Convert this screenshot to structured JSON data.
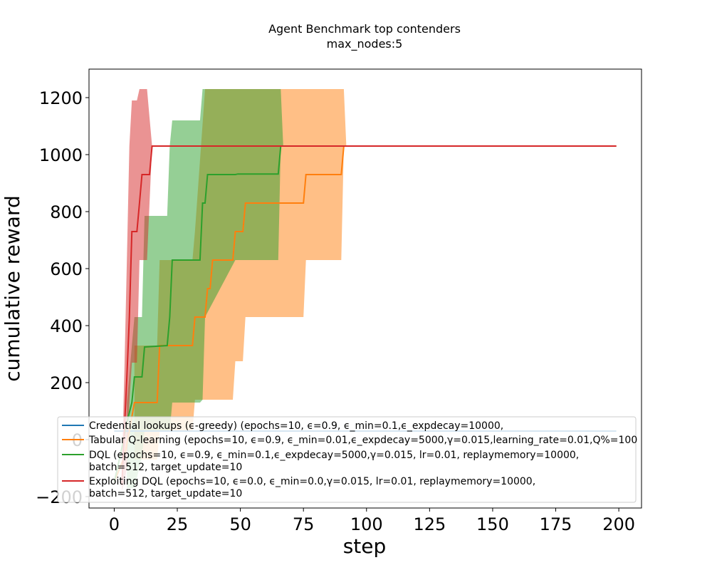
{
  "chart_data": {
    "type": "line",
    "title": "Agent Benchmark top contenders",
    "subtitle": "max_nodes:5",
    "xlabel": "step",
    "ylabel": "cumulative reward",
    "xlim": [
      -10,
      209
    ],
    "ylim": [
      -240,
      1300
    ],
    "xticks": [
      0,
      25,
      50,
      75,
      100,
      125,
      150,
      175,
      200
    ],
    "yticks": [
      -200,
      0,
      200,
      400,
      600,
      800,
      1000,
      1200
    ],
    "legend_position": "lower-center",
    "grid": false,
    "series": [
      {
        "name": "Credential lookups (ϵ-greedy) (epochs=10, ϵ=0.9, ϵ_min=0.1,ϵ_expdecay=10000,",
        "color": "#1f77b4",
        "mean": [
          [
            0,
            30
          ],
          [
            199,
            30
          ]
        ],
        "band_upper": [],
        "band_lower": []
      },
      {
        "name": "Tabular Q-learning (epochs=10, ϵ=0.9, ϵ_min=0.01,ϵ_expdecay=5000,γ=0.015,learning_rate=0.01,Q%=100",
        "color": "#ff7f0e",
        "mean": [
          [
            0,
            -150
          ],
          [
            4,
            -60
          ],
          [
            6,
            30
          ],
          [
            8,
            130
          ],
          [
            17,
            130
          ],
          [
            18,
            330
          ],
          [
            31,
            330
          ],
          [
            32,
            430
          ],
          [
            36,
            430
          ],
          [
            37,
            530
          ],
          [
            38,
            530
          ],
          [
            39,
            630
          ],
          [
            47,
            630
          ],
          [
            48,
            730
          ],
          [
            51,
            730
          ],
          [
            52,
            830
          ],
          [
            75,
            830
          ],
          [
            76,
            930
          ],
          [
            90,
            930
          ],
          [
            91,
            1030
          ],
          [
            199,
            1030
          ]
        ],
        "band_upper": [
          [
            8,
            330
          ],
          [
            17,
            330
          ],
          [
            18,
            630
          ],
          [
            31,
            630
          ],
          [
            32,
            730
          ],
          [
            36,
            1230
          ],
          [
            91,
            1230
          ],
          [
            92,
            1030
          ],
          [
            199,
            1030
          ]
        ],
        "band_lower": [
          [
            8,
            -70
          ],
          [
            17,
            -70
          ],
          [
            18,
            30
          ],
          [
            31,
            30
          ],
          [
            32,
            140
          ],
          [
            47,
            140
          ],
          [
            48,
            275
          ],
          [
            51,
            275
          ],
          [
            52,
            430
          ],
          [
            75,
            430
          ],
          [
            76,
            630
          ],
          [
            90,
            630
          ],
          [
            91,
            1030
          ],
          [
            199,
            1030
          ]
        ]
      },
      {
        "name": "DQL (epochs=10, ϵ=0.9, ϵ_min=0.1,ϵ_expdecay=5000,γ=0.015, lr=0.01, replaymemory=10000,",
        "name_line2": "batch=512, target_update=10",
        "color": "#2ca02c",
        "mean": [
          [
            0,
            -150
          ],
          [
            3,
            -30
          ],
          [
            5,
            60
          ],
          [
            7,
            130
          ],
          [
            8,
            220
          ],
          [
            11,
            220
          ],
          [
            12,
            325
          ],
          [
            21,
            330
          ],
          [
            22,
            430
          ],
          [
            23,
            630
          ],
          [
            34,
            630
          ],
          [
            35,
            830
          ],
          [
            36,
            830
          ],
          [
            37,
            930
          ],
          [
            48,
            930
          ],
          [
            49,
            932
          ],
          [
            65,
            932
          ],
          [
            66,
            1030
          ],
          [
            199,
            1030
          ]
        ],
        "band_upper": [
          [
            5,
            130
          ],
          [
            7,
            330
          ],
          [
            8,
            430
          ],
          [
            11,
            430
          ],
          [
            12,
            785
          ],
          [
            21,
            785
          ],
          [
            22,
            1030
          ],
          [
            23,
            1120
          ],
          [
            34,
            1120
          ],
          [
            35,
            1230
          ],
          [
            66,
            1230
          ],
          [
            67,
            1030
          ],
          [
            199,
            1030
          ]
        ],
        "band_lower": [
          [
            5,
            -170
          ],
          [
            8,
            -170
          ],
          [
            11,
            -60
          ],
          [
            12,
            30
          ],
          [
            22,
            30
          ],
          [
            23,
            130
          ],
          [
            34,
            130
          ],
          [
            35,
            140
          ],
          [
            36,
            430
          ],
          [
            48,
            630
          ],
          [
            65,
            630
          ],
          [
            66,
            1030
          ],
          [
            199,
            1030
          ]
        ]
      },
      {
        "name": "Exploiting DQL (epochs=10, ϵ=0.0, ϵ_min=0.0,γ=0.015, lr=0.01, replaymemory=10000,",
        "name_line2": "batch=512, target_update=10",
        "color": "#d62728",
        "mean": [
          [
            3,
            -160
          ],
          [
            4,
            30
          ],
          [
            5,
            220
          ],
          [
            6,
            430
          ],
          [
            7,
            730
          ],
          [
            9,
            730
          ],
          [
            10,
            830
          ],
          [
            11,
            930
          ],
          [
            14,
            930
          ],
          [
            15,
            1030
          ],
          [
            199,
            1030
          ]
        ],
        "band_upper": [
          [
            3,
            -100
          ],
          [
            4,
            230
          ],
          [
            5,
            630
          ],
          [
            6,
            1030
          ],
          [
            7,
            1190
          ],
          [
            9,
            1190
          ],
          [
            10,
            1230
          ],
          [
            13,
            1230
          ],
          [
            14,
            1130
          ],
          [
            15,
            1030
          ],
          [
            199,
            1030
          ]
        ],
        "band_lower": [
          [
            3,
            -180
          ],
          [
            4,
            -150
          ],
          [
            5,
            -100
          ],
          [
            6,
            130
          ],
          [
            7,
            270
          ],
          [
            9,
            270
          ],
          [
            10,
            630
          ],
          [
            13,
            630
          ],
          [
            14,
            830
          ],
          [
            15,
            1030
          ],
          [
            199,
            1030
          ]
        ]
      }
    ]
  }
}
